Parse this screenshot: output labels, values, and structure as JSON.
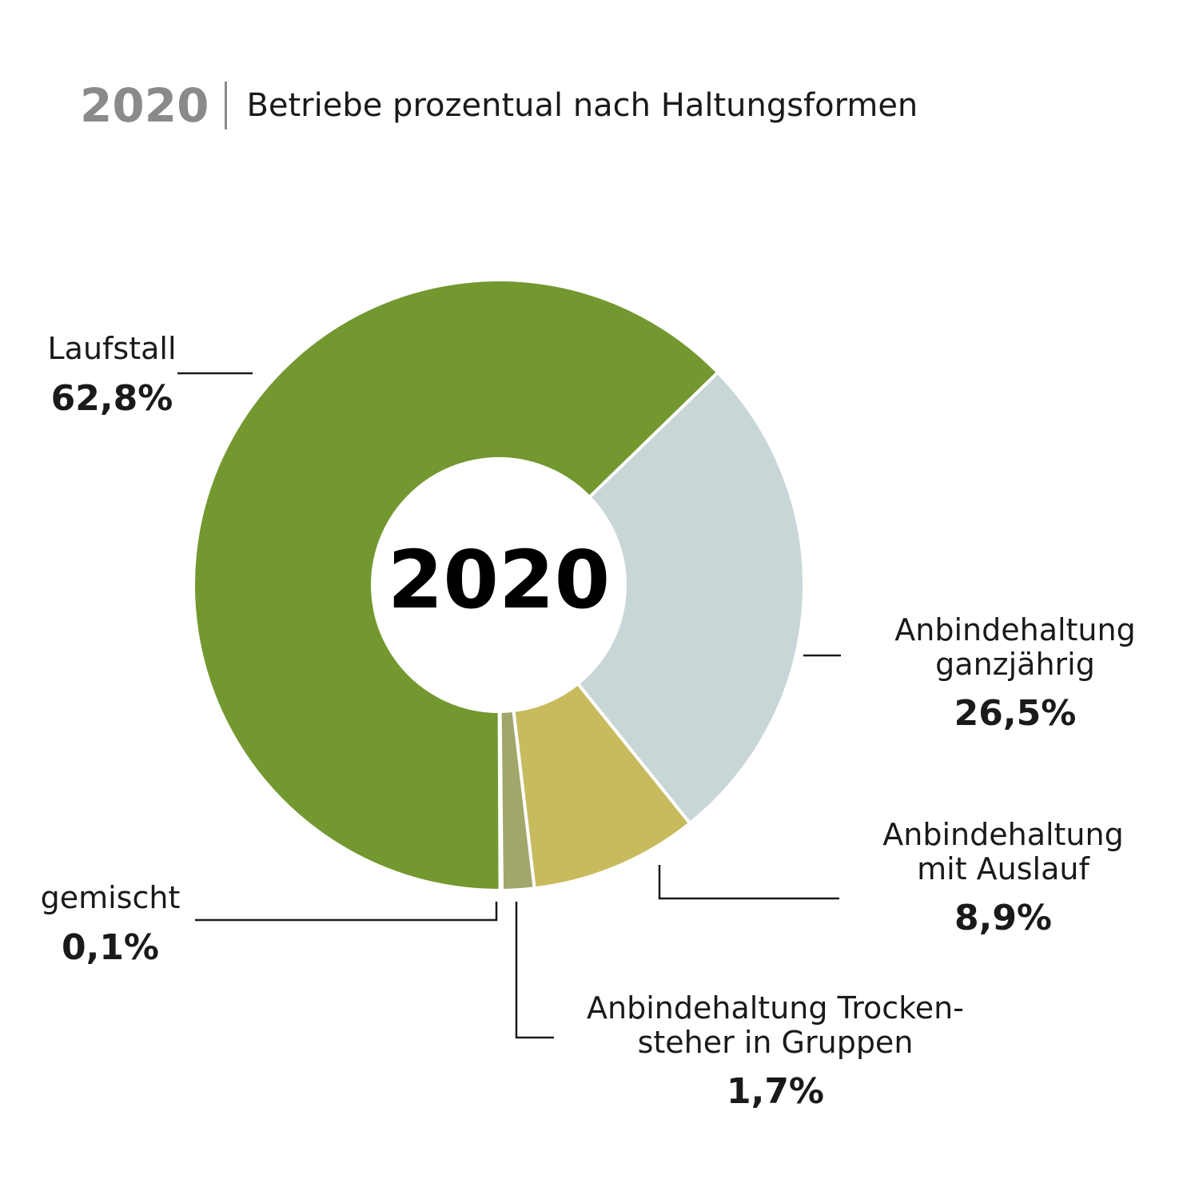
{
  "header": {
    "year": "2020",
    "title": "Betriebe prozentual nach Haltungsformen"
  },
  "chart_data": {
    "type": "pie",
    "center_label": "2020",
    "series": [
      {
        "name": "Laufstall",
        "value": 62.8,
        "label": "62,8%",
        "color": "#739830"
      },
      {
        "name": "Anbindehaltung ganzjährig",
        "value": 26.5,
        "label": "26,5%",
        "color": "#c8d6d8"
      },
      {
        "name": "Anbindehaltung mit Auslauf",
        "value": 8.9,
        "label": "8,9%",
        "color": "#c8bb5e"
      },
      {
        "name": "Anbindehaltung Trockensteher in Gruppen",
        "value": 1.7,
        "label": "1,7%",
        "color": "#a3a66a"
      },
      {
        "name": "gemischt",
        "value": 0.1,
        "label": "0,1%",
        "color": "#8fc1e8"
      }
    ]
  },
  "labels": {
    "laufstall": {
      "name": "Laufstall",
      "value": "62,8%"
    },
    "ganzjaehrig": {
      "line1": "Anbindehaltung",
      "line2": "ganzjährig",
      "value": "26,5%"
    },
    "auslauf": {
      "line1": "Anbindehaltung",
      "line2": "mit Auslauf",
      "value": "8,9%"
    },
    "trocken": {
      "line1": "Anbindehaltung Trocken-",
      "line2": "steher in Gruppen",
      "value": "1,7%"
    },
    "gemischt": {
      "name": "gemischt",
      "value": "0,1%"
    }
  }
}
